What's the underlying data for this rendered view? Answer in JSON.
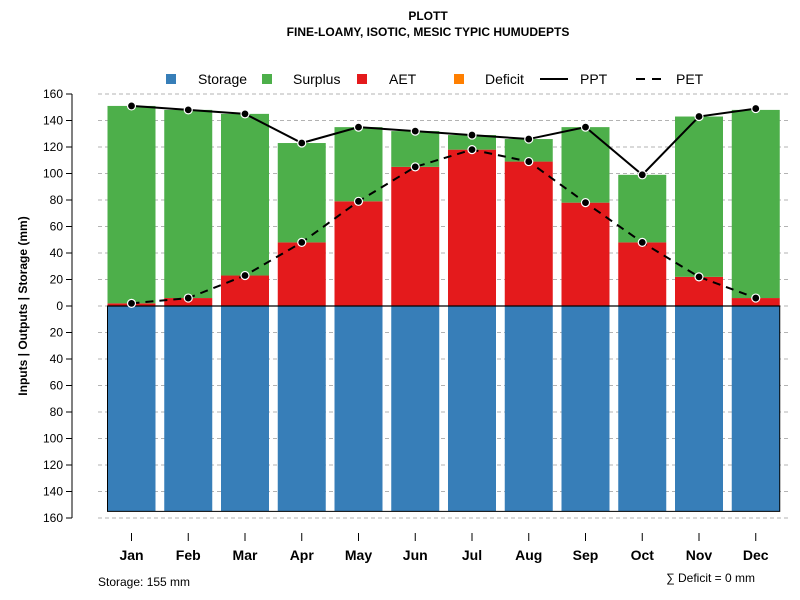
{
  "chart_data": {
    "type": "bar",
    "title": "PLOTT",
    "subtitle": "FINE-LOAMY, ISOTIC, MESIC TYPIC HUMUDEPTS",
    "ylabel": "Inputs | Outputs | Storage    (mm)",
    "xlabel": "",
    "ylim": [
      -160,
      160
    ],
    "yticks": [
      160,
      140,
      120,
      100,
      80,
      60,
      40,
      20,
      0,
      20,
      40,
      60,
      80,
      100,
      120,
      140,
      160
    ],
    "ytick_values": [
      160,
      140,
      120,
      100,
      80,
      60,
      40,
      20,
      0,
      -20,
      -40,
      -60,
      -80,
      -100,
      -120,
      -140,
      -160
    ],
    "grid": true,
    "legend_position": "top",
    "categories": [
      "Jan",
      "Feb",
      "Mar",
      "Apr",
      "May",
      "Jun",
      "Jul",
      "Aug",
      "Sep",
      "Oct",
      "Nov",
      "Dec"
    ],
    "series": [
      {
        "name": "Storage",
        "kind": "bar",
        "color": "#377EB8",
        "values": [
          -155,
          -155,
          -155,
          -155,
          -155,
          -155,
          -155,
          -155,
          -155,
          -155,
          -155,
          -155
        ]
      },
      {
        "name": "Surplus",
        "kind": "bar",
        "color": "#4DAF4A",
        "values": [
          149,
          142,
          122,
          75,
          56,
          27,
          11,
          17,
          57,
          51,
          121,
          142
        ]
      },
      {
        "name": "AET",
        "kind": "bar",
        "color": "#E41A1C",
        "values": [
          2,
          6,
          23,
          48,
          79,
          105,
          118,
          109,
          78,
          48,
          22,
          6
        ]
      },
      {
        "name": "Deficit",
        "kind": "bar",
        "color": "#FF7F00",
        "values": [
          0,
          0,
          0,
          0,
          0,
          0,
          0,
          0,
          0,
          0,
          0,
          0
        ]
      },
      {
        "name": "PPT",
        "kind": "line",
        "style": "solid",
        "color": "#000000",
        "values": [
          151,
          148,
          145,
          123,
          135,
          132,
          129,
          126,
          135,
          99,
          143,
          149
        ]
      },
      {
        "name": "PET",
        "kind": "line",
        "style": "dashed",
        "color": "#000000",
        "values": [
          2,
          6,
          23,
          48,
          79,
          105,
          118,
          109,
          78,
          48,
          22,
          6
        ]
      }
    ],
    "annotations": {
      "storage_note": "Storage: 155 mm",
      "deficit_note": "∑ Deficit = 0 mm"
    }
  }
}
